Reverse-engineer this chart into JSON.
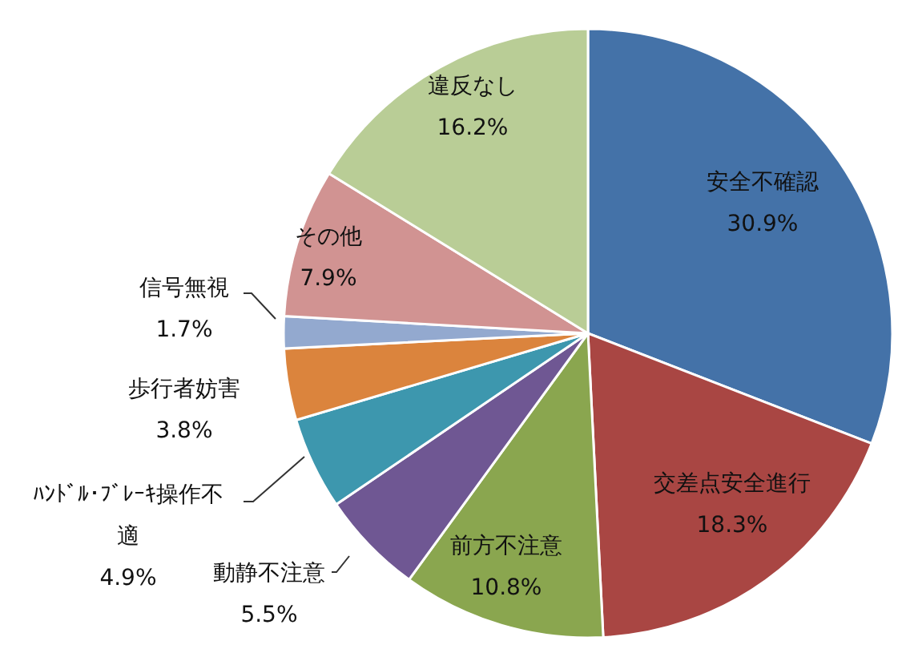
{
  "chart_data": {
    "type": "pie",
    "categories": [
      "安全不確認",
      "交差点安全進行",
      "前方不注意",
      "動静不注意",
      "ﾊﾝﾄﾞﾙ･ﾌﾞﾚｰｷ操作不適",
      "歩行者妨害",
      "信号無視",
      "その他",
      "違反なし"
    ],
    "values": [
      30.9,
      18.3,
      10.8,
      5.5,
      4.9,
      3.8,
      1.7,
      7.9,
      16.2
    ],
    "colors": [
      "#4472a8",
      "#a94643",
      "#8aa64f",
      "#6f5793",
      "#3d97ae",
      "#db843d",
      "#93a9cf",
      "#d19392",
      "#b9cd96"
    ],
    "value_labels": [
      "30.9%",
      "18.3%",
      "10.8%",
      "5.5%",
      "4.9%",
      "3.8%",
      "1.7%",
      "7.9%",
      "16.2%"
    ]
  }
}
